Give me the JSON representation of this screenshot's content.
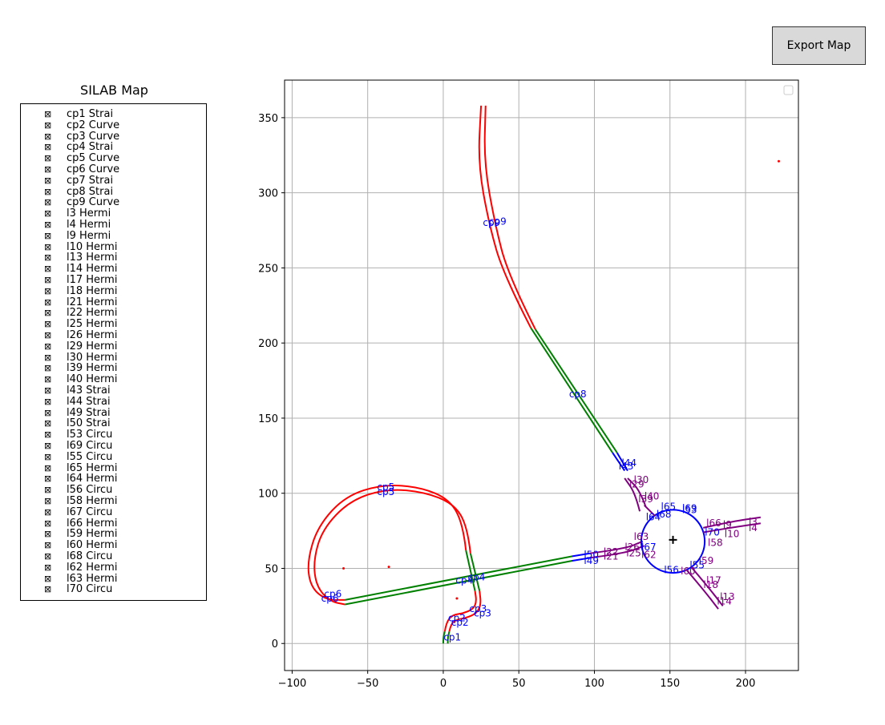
{
  "toolbar": {
    "export_label": "Export Map"
  },
  "legend": {
    "title": "SILAB Map",
    "checkbox_glyph": "⊠",
    "items": [
      "cp1 Strai",
      "cp2 Curve",
      "cp3 Curve",
      "cp4 Strai",
      "cp5 Curve",
      "cp6 Curve",
      "cp7 Strai",
      "cp8 Strai",
      "cp9 Curve",
      "l3 Hermi",
      "l4 Hermi",
      "l9 Hermi",
      "l10 Hermi",
      "l13 Hermi",
      "l14 Hermi",
      "l17 Hermi",
      "l18 Hermi",
      "l21 Hermi",
      "l22 Hermi",
      "l25 Hermi",
      "l26 Hermi",
      "l29 Hermi",
      "l30 Hermi",
      "l39 Hermi",
      "l40 Hermi",
      "l43 Strai",
      "l44 Strai",
      "l49 Strai",
      "l50 Strai",
      "l53 Circu",
      "l69 Circu",
      "l55 Circu",
      "l65 Hermi",
      "l64 Hermi",
      "l56 Circu",
      "l58 Hermi",
      "l67 Circu",
      "l66 Hermi",
      "l59 Hermi",
      "l60 Hermi",
      "l68 Circu",
      "l62 Hermi",
      "l63 Hermi",
      "l70 Circu"
    ]
  },
  "chart_data": {
    "type": "line",
    "xlim": [
      -105,
      235
    ],
    "ylim": [
      -18,
      375
    ],
    "xticks": [
      -100,
      -50,
      0,
      50,
      100,
      150,
      200
    ],
    "yticks": [
      0,
      50,
      100,
      150,
      200,
      250,
      300,
      350
    ],
    "xtick_labels": [
      "−100",
      "−50",
      "0",
      "50",
      "100",
      "150",
      "200"
    ],
    "ytick_labels": [
      "0",
      "50",
      "100",
      "150",
      "200",
      "250",
      "300",
      "350"
    ],
    "grid": true,
    "colors": {
      "straight": "#008000",
      "curve": "#ff0000",
      "hermite": "#800080",
      "circle": "#0000ff",
      "label": "#0000ff",
      "grid": "#b0b0b0",
      "point": "#ff0000"
    },
    "series": [
      {
        "kind": "straight",
        "points": [
          [
            0,
            0
          ],
          [
            0,
            4
          ],
          [
            1,
            8
          ]
        ]
      },
      {
        "kind": "straight",
        "points": [
          [
            3,
            0
          ],
          [
            3,
            4
          ],
          [
            4,
            8
          ]
        ]
      },
      {
        "kind": "curve",
        "points": [
          [
            1,
            8
          ],
          [
            2,
            14
          ],
          [
            6,
            19
          ],
          [
            13,
            20
          ],
          [
            20,
            23
          ],
          [
            22,
            28
          ],
          [
            21,
            35
          ]
        ]
      },
      {
        "kind": "curve",
        "points": [
          [
            4,
            8
          ],
          [
            5,
            13
          ],
          [
            9,
            16
          ],
          [
            15,
            17
          ],
          [
            22,
            20
          ],
          [
            25,
            26
          ],
          [
            24,
            35
          ]
        ]
      },
      {
        "kind": "straight",
        "points": [
          [
            21,
            35
          ],
          [
            15,
            62
          ]
        ]
      },
      {
        "kind": "straight",
        "points": [
          [
            24,
            35
          ],
          [
            18,
            60
          ]
        ]
      },
      {
        "kind": "curve",
        "points": [
          [
            15,
            62
          ],
          [
            13,
            80
          ],
          [
            4,
            96
          ],
          [
            -15,
            104
          ],
          [
            -40,
            106
          ],
          [
            -65,
            98
          ],
          [
            -83,
            78
          ],
          [
            -90,
            55
          ],
          [
            -88,
            38
          ],
          [
            -78,
            29
          ],
          [
            -65,
            29
          ]
        ]
      },
      {
        "kind": "curve",
        "points": [
          [
            18,
            60
          ],
          [
            16,
            78
          ],
          [
            7,
            93
          ],
          [
            -13,
            101
          ],
          [
            -38,
            103
          ],
          [
            -62,
            95
          ],
          [
            -80,
            76
          ],
          [
            -86,
            55
          ],
          [
            -84,
            38
          ],
          [
            -75,
            28
          ],
          [
            -65,
            26
          ]
        ]
      },
      {
        "kind": "straight",
        "points": [
          [
            -65,
            29
          ],
          [
            85,
            58
          ]
        ]
      },
      {
        "kind": "straight",
        "points": [
          [
            -65,
            26
          ],
          [
            85,
            55
          ]
        ]
      },
      {
        "kind": "circle_line",
        "points": [
          [
            85,
            58
          ],
          [
            97,
            60
          ]
        ]
      },
      {
        "kind": "circle_line",
        "points": [
          [
            85,
            55
          ],
          [
            97,
            57
          ]
        ]
      },
      {
        "kind": "hermite",
        "points": [
          [
            97,
            60
          ],
          [
            120,
            63
          ],
          [
            132,
            68
          ]
        ]
      },
      {
        "kind": "hermite",
        "points": [
          [
            97,
            57
          ],
          [
            120,
            60
          ],
          [
            133,
            65
          ]
        ]
      },
      {
        "kind": "circle",
        "center": [
          152,
          68
        ],
        "radius": 21
      },
      {
        "kind": "hermite",
        "points": [
          [
            130,
            88
          ],
          [
            127,
            100
          ],
          [
            120,
            110
          ]
        ]
      },
      {
        "kind": "hermite",
        "points": [
          [
            134,
            91
          ],
          [
            130,
            102
          ],
          [
            122,
            110
          ]
        ]
      },
      {
        "kind": "circle_line",
        "points": [
          [
            112,
            127
          ],
          [
            120,
            115
          ]
        ]
      },
      {
        "kind": "circle_line",
        "points": [
          [
            115,
            127
          ],
          [
            122,
            115
          ]
        ]
      },
      {
        "kind": "straight",
        "points": [
          [
            112,
            127
          ],
          [
            58,
            210
          ]
        ]
      },
      {
        "kind": "straight",
        "points": [
          [
            115,
            127
          ],
          [
            61,
            209
          ]
        ]
      },
      {
        "kind": "curve",
        "points": [
          [
            58,
            210
          ],
          [
            40,
            245
          ],
          [
            30,
            280
          ],
          [
            23,
            320
          ],
          [
            25,
            358
          ]
        ]
      },
      {
        "kind": "curve",
        "points": [
          [
            61,
            209
          ],
          [
            43,
            245
          ],
          [
            34,
            280
          ],
          [
            27,
            320
          ],
          [
            28,
            358
          ]
        ]
      },
      {
        "kind": "hermite",
        "points": [
          [
            172,
            77
          ],
          [
            190,
            81
          ],
          [
            210,
            84
          ]
        ]
      },
      {
        "kind": "hermite",
        "points": [
          [
            172,
            74
          ],
          [
            190,
            77
          ],
          [
            210,
            80
          ]
        ]
      },
      {
        "kind": "hermite",
        "points": [
          [
            164,
            51
          ],
          [
            175,
            38
          ],
          [
            185,
            25
          ]
        ]
      },
      {
        "kind": "hermite",
        "points": [
          [
            161,
            49
          ],
          [
            172,
            36
          ],
          [
            182,
            23
          ]
        ]
      },
      {
        "kind": "hermite",
        "points": [
          [
            140,
            85
          ],
          [
            135,
            90
          ],
          [
            133,
            92
          ]
        ]
      }
    ],
    "labels": [
      {
        "text": "cp1",
        "x": 6,
        "y": 4,
        "color": "label"
      },
      {
        "text": "cp2",
        "x": 11,
        "y": 14,
        "color": "label"
      },
      {
        "text": "cp2",
        "x": 9,
        "y": 17,
        "color": "label"
      },
      {
        "text": "cp3",
        "x": 26,
        "y": 20,
        "color": "label"
      },
      {
        "text": "cp3",
        "x": 23,
        "y": 23,
        "color": "label"
      },
      {
        "text": "cp4",
        "x": 22,
        "y": 44,
        "color": "label"
      },
      {
        "text": "cp4",
        "x": 14,
        "y": 42,
        "color": "label"
      },
      {
        "text": "cp5",
        "x": -38,
        "y": 101,
        "color": "label"
      },
      {
        "text": "cp5",
        "x": -38,
        "y": 104,
        "color": "label"
      },
      {
        "text": "cp6",
        "x": -73,
        "y": 33,
        "color": "label"
      },
      {
        "text": "cp6",
        "x": -75,
        "y": 30,
        "color": "label"
      },
      {
        "text": "cp8",
        "x": 89,
        "y": 166,
        "color": "label"
      },
      {
        "text": "cp9",
        "x": 32,
        "y": 280,
        "color": "label"
      },
      {
        "text": "cp9",
        "x": 36,
        "y": 281,
        "color": "label"
      },
      {
        "text": "l44",
        "x": 123,
        "y": 120,
        "color": "label"
      },
      {
        "text": "l43",
        "x": 121,
        "y": 118,
        "color": "label"
      },
      {
        "text": "l30",
        "x": 131,
        "y": 109,
        "color": "hermite"
      },
      {
        "text": "l29",
        "x": 128,
        "y": 106,
        "color": "hermite"
      },
      {
        "text": "l40",
        "x": 138,
        "y": 98,
        "color": "hermite"
      },
      {
        "text": "l39",
        "x": 134,
        "y": 96,
        "color": "hermite"
      },
      {
        "text": "l65",
        "x": 149,
        "y": 91,
        "color": "label"
      },
      {
        "text": "l69",
        "x": 163,
        "y": 90,
        "color": "label"
      },
      {
        "text": "l53",
        "x": 163,
        "y": 89,
        "color": "label"
      },
      {
        "text": "l64",
        "x": 139,
        "y": 84,
        "color": "label"
      },
      {
        "text": "l68",
        "x": 146,
        "y": 86,
        "color": "label"
      },
      {
        "text": "l66",
        "x": 179,
        "y": 80,
        "color": "hermite"
      },
      {
        "text": "l9",
        "x": 188,
        "y": 79,
        "color": "hermite"
      },
      {
        "text": "l3",
        "x": 205,
        "y": 81,
        "color": "hermite"
      },
      {
        "text": "l4",
        "x": 205,
        "y": 77,
        "color": "hermite"
      },
      {
        "text": "l70",
        "x": 178,
        "y": 74,
        "color": "label"
      },
      {
        "text": "l10",
        "x": 191,
        "y": 73,
        "color": "hermite"
      },
      {
        "text": "l58",
        "x": 180,
        "y": 67,
        "color": "hermite"
      },
      {
        "text": "l63",
        "x": 131,
        "y": 71,
        "color": "hermite"
      },
      {
        "text": "l26",
        "x": 125,
        "y": 64,
        "color": "hermite"
      },
      {
        "text": "l67",
        "x": 136,
        "y": 64,
        "color": "label"
      },
      {
        "text": "l22",
        "x": 111,
        "y": 61,
        "color": "hermite"
      },
      {
        "text": "l21",
        "x": 111,
        "y": 58,
        "color": "hermite"
      },
      {
        "text": "l25",
        "x": 126,
        "y": 60,
        "color": "hermite"
      },
      {
        "text": "l62",
        "x": 136,
        "y": 59,
        "color": "hermite"
      },
      {
        "text": "l50",
        "x": 98,
        "y": 59,
        "color": "label"
      },
      {
        "text": "l49",
        "x": 98,
        "y": 55,
        "color": "label"
      },
      {
        "text": "l59",
        "x": 174,
        "y": 55,
        "color": "hermite"
      },
      {
        "text": "l55",
        "x": 168,
        "y": 52,
        "color": "label"
      },
      {
        "text": "l56",
        "x": 151,
        "y": 49,
        "color": "label"
      },
      {
        "text": "l60",
        "x": 162,
        "y": 48,
        "color": "hermite"
      },
      {
        "text": "l17",
        "x": 179,
        "y": 42,
        "color": "hermite"
      },
      {
        "text": "l18",
        "x": 177,
        "y": 39,
        "color": "hermite"
      },
      {
        "text": "l13",
        "x": 188,
        "y": 31,
        "color": "hermite"
      },
      {
        "text": "l14",
        "x": 186,
        "y": 28,
        "color": "hermite"
      }
    ],
    "points": [
      [
        -66,
        50
      ],
      [
        -36,
        51
      ],
      [
        9,
        30
      ],
      [
        222,
        321
      ]
    ],
    "marker": [
      152,
      69
    ]
  }
}
